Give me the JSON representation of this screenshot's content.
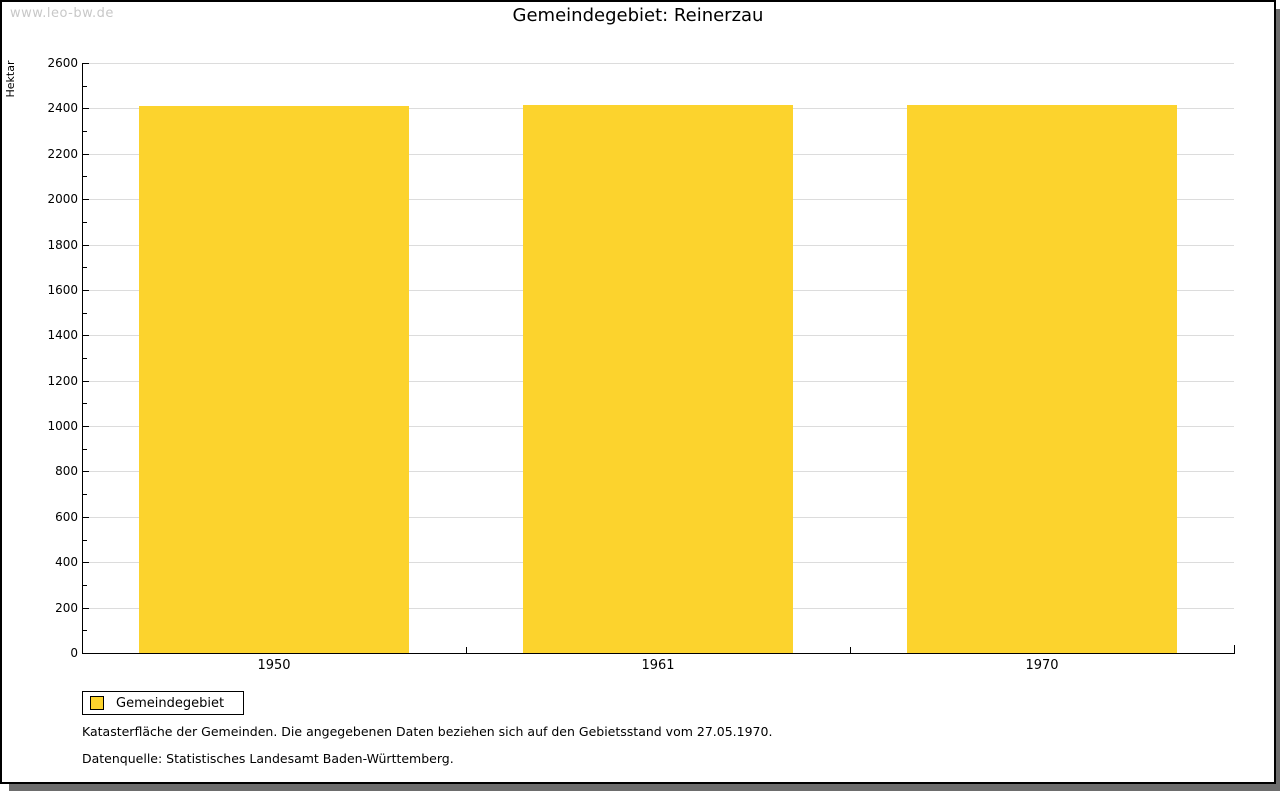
{
  "watermark": "www.leo-bw.de",
  "title": "Gemeindegebiet: Reinerzau",
  "chart_data": {
    "type": "bar",
    "title": "Gemeindegebiet: Reinerzau",
    "categories": [
      "1950",
      "1961",
      "1970"
    ],
    "series": [
      {
        "name": "Gemeindegebiet",
        "values": [
          2410,
          2417,
          2417
        ]
      }
    ],
    "xlabel": "",
    "ylabel": "Hektar",
    "ylim": [
      0,
      2600
    ],
    "ytick_interval": 200,
    "minor_tick_interval": 100,
    "grid": true,
    "legend_position": "bottom-left",
    "bar_color": "#fcd32d",
    "gridline_color": "#dcdcdc"
  },
  "legend": {
    "label": "Gemeindegebiet"
  },
  "footnotes": [
    "Katasterfläche der Gemeinden. Die angegebenen Daten beziehen sich auf den Gebietsstand vom 27.05.1970.",
    "Datenquelle: Statistisches Landesamt Baden-Württemberg."
  ]
}
